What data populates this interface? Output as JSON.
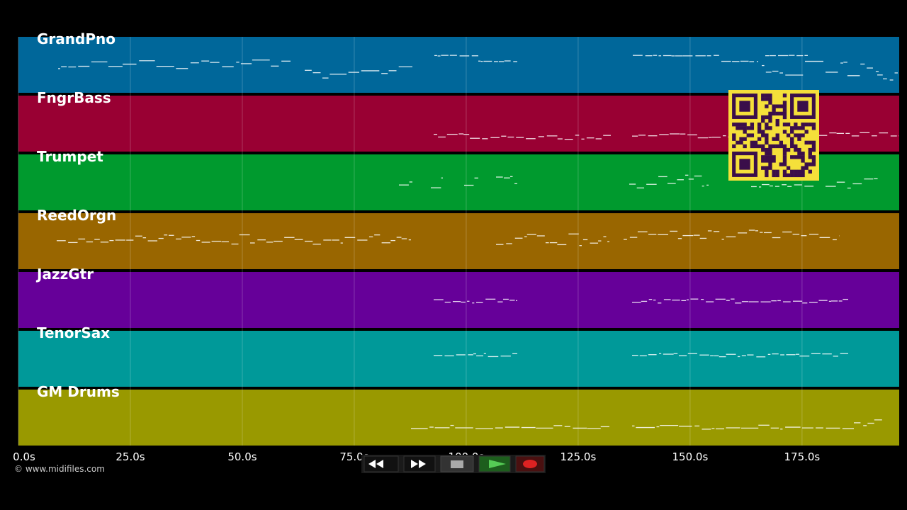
{
  "tracks": [
    {
      "name": "GrandPno",
      "color": "#00679a"
    },
    {
      "name": "FngrBass",
      "color": "#990033"
    },
    {
      "name": "Trumpet",
      "color": "#009a2e"
    },
    {
      "name": "ReedOrgn",
      "color": "#996600"
    },
    {
      "name": "JazzGtr",
      "color": "#660099"
    },
    {
      "name": "TenorSax",
      "color": "#009999"
    },
    {
      "name": "GM Drums",
      "color": "#999900"
    }
  ],
  "time_axis": {
    "range": [
      0,
      196.7
    ],
    "ticks": [
      {
        "value": 0,
        "label": "0.0s"
      },
      {
        "value": 25,
        "label": "25.0s"
      },
      {
        "value": 50,
        "label": "50.0s"
      },
      {
        "value": 75,
        "label": "75.0s"
      },
      {
        "value": 100,
        "label": "100.0s"
      },
      {
        "value": 125,
        "label": "125.0s"
      },
      {
        "value": 150,
        "label": "150.0s"
      },
      {
        "value": 175,
        "label": "175.0s"
      }
    ]
  },
  "credit": "© www.midifiles.com"
}
